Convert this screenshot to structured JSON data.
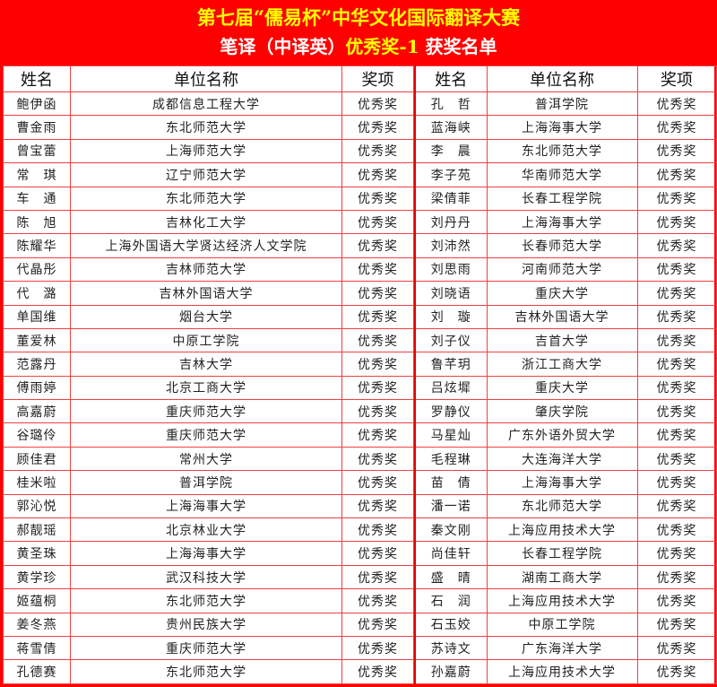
{
  "title": "第七届“儒易杯”中华文化国际翻译大赛",
  "subtitle": {
    "part1": "笔译（中译英）",
    "part2": "优秀奖-1",
    "part3": " 获奖名单"
  },
  "colors": {
    "banner": "#ff0000",
    "title": "#ffff00",
    "subtitle": "#ffffff",
    "grid": "#f04040"
  },
  "columns": [
    "姓名",
    "单位名称",
    "奖项"
  ],
  "left_rows": [
    [
      "鲍伊函",
      "成都信息工程大学",
      "优秀奖"
    ],
    [
      "曹金雨",
      "东北师范大学",
      "优秀奖"
    ],
    [
      "曾宝蕾",
      "上海师范大学",
      "优秀奖"
    ],
    [
      "常　琪",
      "辽宁师范大学",
      "优秀奖"
    ],
    [
      "车　通",
      "东北师范大学",
      "优秀奖"
    ],
    [
      "陈　旭",
      "吉林化工大学",
      "优秀奖"
    ],
    [
      "陈耀华",
      "上海外国语大学贤达经济人文学院",
      "优秀奖"
    ],
    [
      "代晶彤",
      "吉林师范大学",
      "优秀奖"
    ],
    [
      "代　潞",
      "吉林外国语大学",
      "优秀奖"
    ],
    [
      "单国维",
      "烟台大学",
      "优秀奖"
    ],
    [
      "董爱林",
      "中原工学院",
      "优秀奖"
    ],
    [
      "范露丹",
      "吉林大学",
      "优秀奖"
    ],
    [
      "傅雨婷",
      "北京工商大学",
      "优秀奖"
    ],
    [
      "高嘉蔚",
      "重庆师范大学",
      "优秀奖"
    ],
    [
      "谷璐伶",
      "重庆师范大学",
      "优秀奖"
    ],
    [
      "顾佳君",
      "常州大学",
      "优秀奖"
    ],
    [
      "桂米啦",
      "普洱学院",
      "优秀奖"
    ],
    [
      "郭沁悦",
      "上海海事大学",
      "优秀奖"
    ],
    [
      "郝靓瑶",
      "北京林业大学",
      "优秀奖"
    ],
    [
      "黄圣珠",
      "上海海事大学",
      "优秀奖"
    ],
    [
      "黄学珍",
      "武汉科技大学",
      "优秀奖"
    ],
    [
      "姬蕴桐",
      "东北师范大学",
      "优秀奖"
    ],
    [
      "姜冬燕",
      "贵州民族大学",
      "优秀奖"
    ],
    [
      "蒋雪倩",
      "重庆师范大学",
      "优秀奖"
    ],
    [
      "孔德赛",
      "东北师范大学",
      "优秀奖"
    ]
  ],
  "right_rows": [
    [
      "孔　哲",
      "普洱学院",
      "优秀奖"
    ],
    [
      "蓝海峡",
      "上海海事大学",
      "优秀奖"
    ],
    [
      "李　晨",
      "东北师范大学",
      "优秀奖"
    ],
    [
      "李子苑",
      "华南师范大学",
      "优秀奖"
    ],
    [
      "梁倩菲",
      "长春工程学院",
      "优秀奖"
    ],
    [
      "刘丹丹",
      "上海海事大学",
      "优秀奖"
    ],
    [
      "刘沛然",
      "长春师范大学",
      "优秀奖"
    ],
    [
      "刘思雨",
      "河南师范大学",
      "优秀奖"
    ],
    [
      "刘晓语",
      "重庆大学",
      "优秀奖"
    ],
    [
      "刘　璇",
      "吉林外国语大学",
      "优秀奖"
    ],
    [
      "刘子仪",
      "吉首大学",
      "优秀奖"
    ],
    [
      "鲁芊玥",
      "浙江工商大学",
      "优秀奖"
    ],
    [
      "吕炫墀",
      "重庆大学",
      "优秀奖"
    ],
    [
      "罗静仪",
      "肇庆学院",
      "优秀奖"
    ],
    [
      "马星灿",
      "广东外语外贸大学",
      "优秀奖"
    ],
    [
      "毛程琳",
      "大连海洋大学",
      "优秀奖"
    ],
    [
      "苗　倩",
      "上海海事大学",
      "优秀奖"
    ],
    [
      "潘一诺",
      "东北师范大学",
      "优秀奖"
    ],
    [
      "秦文刚",
      "上海应用技术大学",
      "优秀奖"
    ],
    [
      "尚佳轩",
      "长春工程学院",
      "优秀奖"
    ],
    [
      "盛　晴",
      "湖南工商大学",
      "优秀奖"
    ],
    [
      "石　润",
      "上海应用技术大学",
      "优秀奖"
    ],
    [
      "石玉姣",
      "中原工学院",
      "优秀奖"
    ],
    [
      "苏诗文",
      "广东海洋大学",
      "优秀奖"
    ],
    [
      "孙嘉蔚",
      "上海应用技术大学",
      "优秀奖"
    ]
  ]
}
